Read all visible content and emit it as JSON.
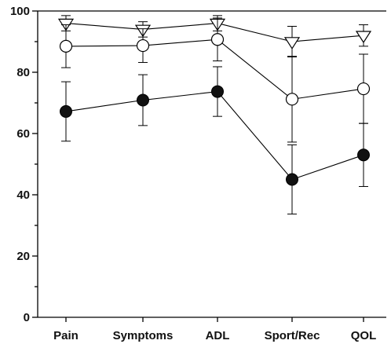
{
  "chart_data": {
    "type": "line",
    "title": "",
    "xlabel": "",
    "ylabel": "",
    "categories": [
      "Pain",
      "Symptoms",
      "ADL",
      "Sport/Rec",
      "QOL"
    ],
    "ylim": [
      0,
      100
    ],
    "y_ticks": [
      0,
      20,
      40,
      60,
      80,
      100
    ],
    "y_tick_labels": [
      "0",
      "20",
      "40",
      "60",
      "80",
      "100"
    ],
    "y_minor_step": 10,
    "grid": false,
    "legend": "none",
    "series": [
      {
        "marker": "triangle-down-open",
        "color": "#000000",
        "values": [
          96,
          94,
          96,
          90,
          92
        ],
        "error": [
          2.5,
          2.5,
          2.5,
          5,
          3.5
        ]
      },
      {
        "marker": "circle-open",
        "color": "#000000",
        "values": [
          88.5,
          88.7,
          90.7,
          71.2,
          74.6
        ],
        "error": [
          7,
          5.5,
          7,
          14,
          11.3
        ]
      },
      {
        "marker": "circle-filled",
        "color": "#111111",
        "values": [
          67.2,
          70.9,
          73.7,
          45,
          53
        ],
        "error": [
          9.7,
          8.3,
          8.1,
          11.3,
          10.3
        ]
      }
    ]
  }
}
